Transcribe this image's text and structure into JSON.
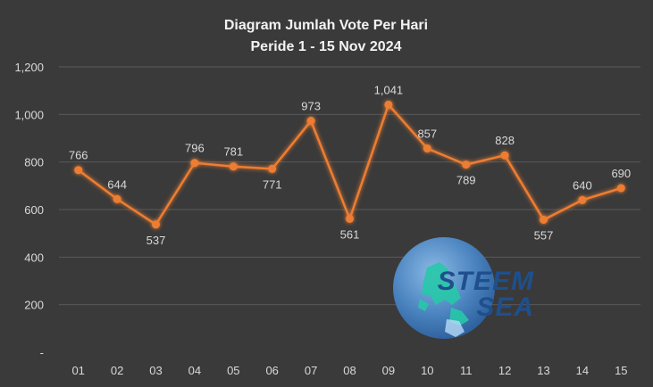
{
  "chart_data": {
    "type": "line",
    "title": "Diagram Jumlah Vote Per Hari",
    "subtitle": "Peride 1 - 15 Nov 2024",
    "categories": [
      "01",
      "02",
      "03",
      "04",
      "05",
      "06",
      "07",
      "08",
      "09",
      "10",
      "11",
      "12",
      "13",
      "14",
      "15"
    ],
    "values": [
      766,
      644,
      537,
      796,
      781,
      771,
      973,
      561,
      1041,
      857,
      789,
      828,
      557,
      640,
      690
    ],
    "value_labels": [
      "766",
      "644",
      "537",
      "796",
      "781",
      "771",
      "973",
      "561",
      "1,041",
      "857",
      "789",
      "828",
      "557",
      "640",
      "690"
    ],
    "ylim": [
      0,
      1200
    ],
    "y_ticks": [
      0,
      200,
      400,
      600,
      800,
      1000,
      1200
    ],
    "y_tick_labels": [
      "-",
      "200",
      "400",
      "600",
      "800",
      "1,000",
      "1,200"
    ],
    "grid": true,
    "legend": "none",
    "line_color": "#ed7d31",
    "background": "#3a3a3a"
  },
  "logo": {
    "line1": "STEEM",
    "line2": "SEA"
  },
  "colors": {
    "background": "#3a3a3a",
    "gridline": "#595959",
    "text": "#d9d9d9",
    "series": "#ed7d31",
    "logo_globe": "#4a86c5",
    "logo_land": "#27c8a8",
    "logo_text": "#1f4f8c"
  }
}
